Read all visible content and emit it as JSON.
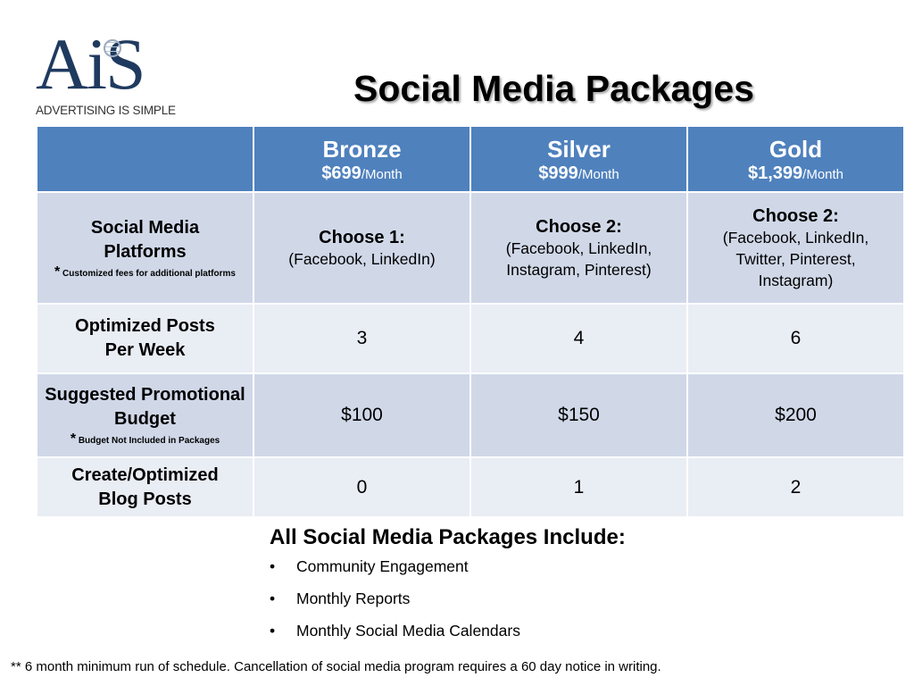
{
  "logo": {
    "mark": "AiS",
    "tagline": "ADVERTISING IS SIMPLE"
  },
  "title": "Social Media Packages",
  "packages": [
    {
      "name": "Bronze",
      "price": "$699",
      "per": "/Month"
    },
    {
      "name": "Silver",
      "price": "$999",
      "per": "/Month"
    },
    {
      "name": "Gold",
      "price": "$1,399",
      "per": "/Month"
    }
  ],
  "rows": [
    {
      "label": "Social Media Platforms",
      "note_star": "*",
      "note": "Customized fees for additional platforms",
      "values": [
        {
          "choose": "Choose 1:",
          "options": "(Facebook, LinkedIn)"
        },
        {
          "choose": "Choose 2:",
          "options": "(Facebook, LinkedIn, Instagram, Pinterest)"
        },
        {
          "choose": "Choose 2:",
          "options": "(Facebook, LinkedIn, Twitter, Pinterest, Instagram)"
        }
      ]
    },
    {
      "label": "Optimized Posts Per Week",
      "values": [
        "3",
        "4",
        "6"
      ]
    },
    {
      "label": "Suggested Promotional Budget",
      "note_star": "*",
      "note": "Budget Not Included in Packages",
      "values": [
        "$100",
        "$150",
        "$200"
      ]
    },
    {
      "label": "Create/Optimized Blog Posts",
      "values": [
        "0",
        "1",
        "2"
      ]
    }
  ],
  "includes": {
    "heading": "All Social Media Packages Include:",
    "bullet": "•",
    "items": [
      "Community Engagement",
      "Monthly Reports",
      "Monthly Social Media Calendars"
    ]
  },
  "footnote": "** 6 month minimum run of schedule. Cancellation of social media program requires a 60 day notice in writing.",
  "colors": {
    "header": "#4f81bd",
    "row_dark": "#d0d8e8",
    "row_light": "#e9edf4",
    "logo": "#1f3a5f"
  }
}
